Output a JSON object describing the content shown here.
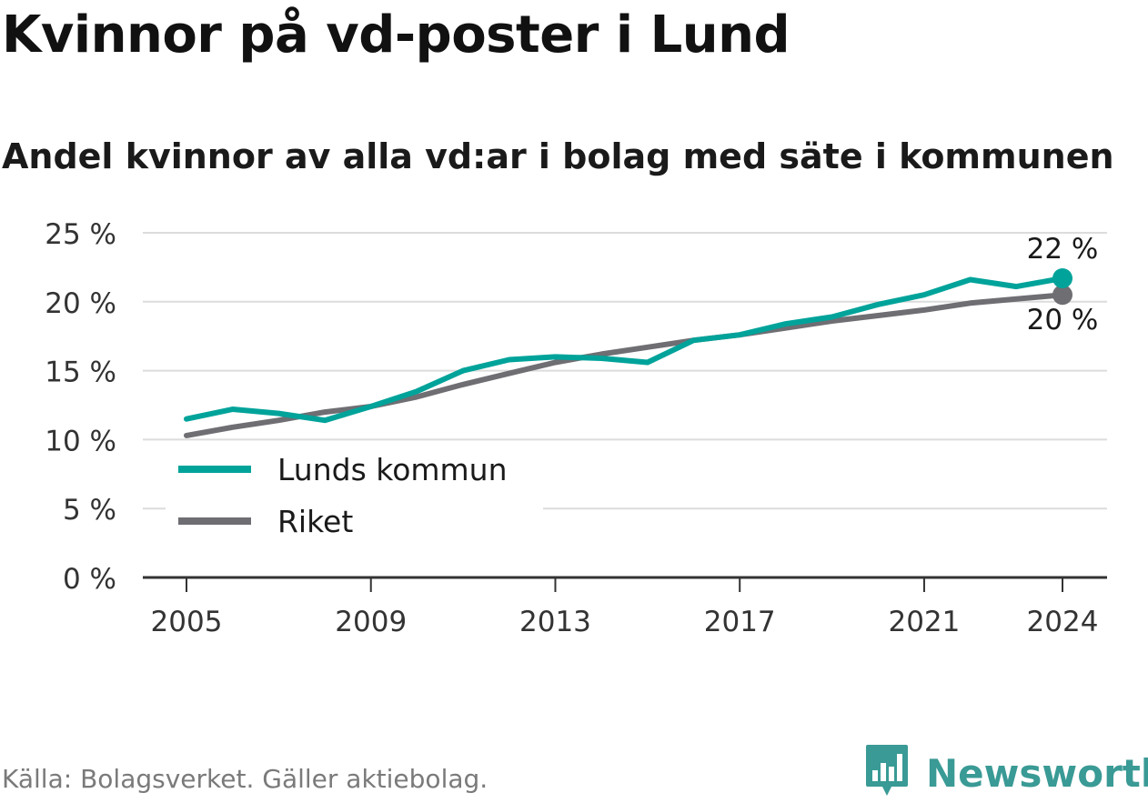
{
  "header": {
    "title": "Kvinnor på vd-poster i Lund",
    "subtitle": "Andel kvinnor av alla vd:ar i bolag med säte i kommunen"
  },
  "footer": {
    "source": "Källa: Bolagsverket. Gäller aktiebolag.",
    "brand": "Newsworthy",
    "brand_icon": "bar-chart-logo-icon"
  },
  "colors": {
    "lund": "#00a39a",
    "riket": "#6e6e73",
    "grid": "#dcdcdc",
    "axis": "#333333",
    "brand": "#3a9a95"
  },
  "chart_data": {
    "type": "line",
    "x": [
      2005,
      2006,
      2007,
      2008,
      2009,
      2010,
      2011,
      2012,
      2013,
      2014,
      2015,
      2016,
      2017,
      2018,
      2019,
      2020,
      2021,
      2022,
      2023,
      2024
    ],
    "series": [
      {
        "name": "Lunds kommun",
        "color": "#00a39a",
        "values": [
          11.5,
          12.2,
          11.9,
          11.4,
          12.4,
          13.5,
          15.0,
          15.8,
          16.0,
          15.9,
          15.6,
          17.2,
          17.6,
          18.4,
          18.9,
          19.8,
          20.5,
          21.6,
          21.1,
          21.7
        ],
        "end_label": "22 %"
      },
      {
        "name": "Riket",
        "color": "#6e6e73",
        "values": [
          10.3,
          10.9,
          11.4,
          12.0,
          12.4,
          13.1,
          14.0,
          14.8,
          15.6,
          16.2,
          16.7,
          17.2,
          17.6,
          18.1,
          18.6,
          19.0,
          19.4,
          19.9,
          20.2,
          20.5
        ],
        "end_label": "20 %"
      }
    ],
    "x_ticks": [
      "2005",
      "2009",
      "2013",
      "2017",
      "2021",
      "2024"
    ],
    "x_tick_values": [
      2005,
      2009,
      2013,
      2017,
      2021,
      2024
    ],
    "y_ticks": [
      "0 %",
      "5 %",
      "10 %",
      "15 %",
      "20 %",
      "25 %"
    ],
    "y_tick_values": [
      0,
      5,
      10,
      15,
      20,
      25
    ],
    "ylim": [
      0,
      25
    ],
    "xlim": [
      2005,
      2024
    ],
    "grid": true,
    "legend_position": "lower-left",
    "title": "Kvinnor på vd-poster i Lund",
    "subtitle": "Andel kvinnor av alla vd:ar i bolag med säte i kommunen",
    "xlabel": "",
    "ylabel": ""
  }
}
